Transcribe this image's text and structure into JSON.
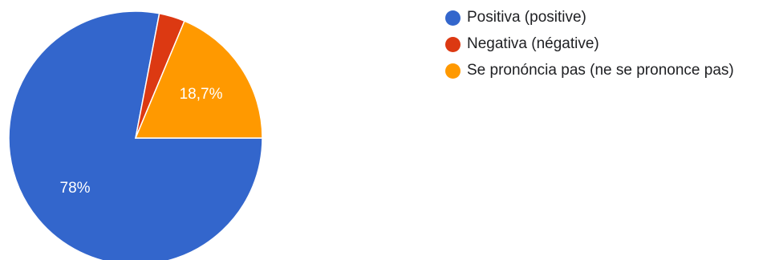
{
  "chart_data": {
    "type": "pie",
    "series": [
      {
        "name": "Positiva (positive)",
        "value": 78,
        "label": "78%",
        "color": "#3366cc"
      },
      {
        "name": "Negativa (négative)",
        "value": 3.3,
        "label": "",
        "color": "#dc3912"
      },
      {
        "name": "Se pronóncia pas (ne se prononce pas)",
        "value": 18.7,
        "label": "18,7%",
        "color": "#ff9900"
      }
    ],
    "legend_position": "right"
  }
}
